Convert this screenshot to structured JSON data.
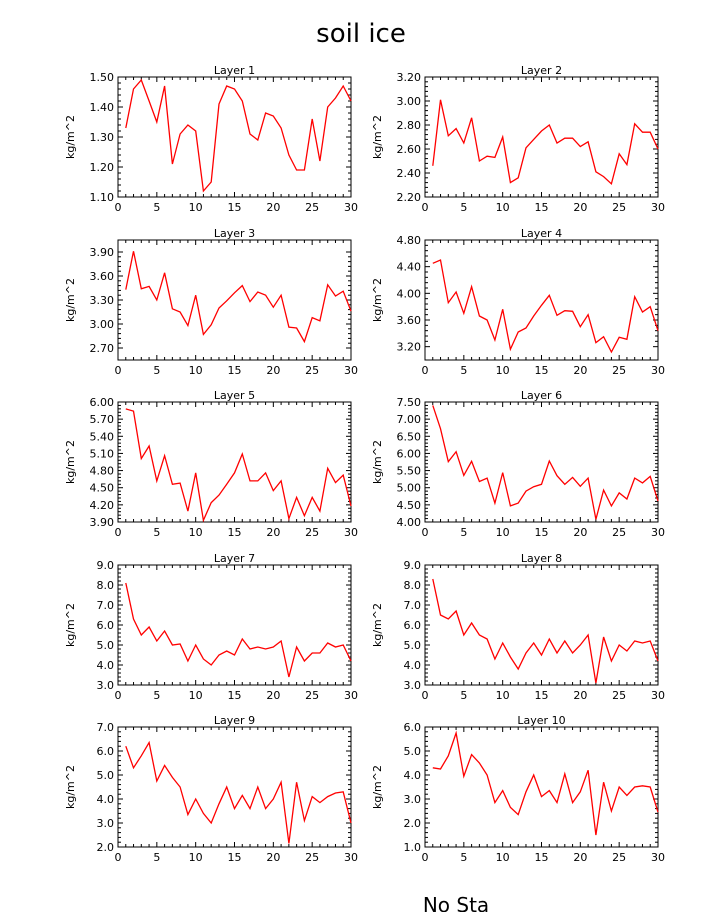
{
  "figure": {
    "title": "soil ice",
    "footer_text": "No Sta"
  },
  "colors": {
    "line": "#ff0000",
    "axis": "#000000",
    "background": "#ffffff"
  },
  "chart_data": [
    {
      "type": "line",
      "title": "Layer 1",
      "ylabel": "kg/m^2",
      "xlim": [
        0,
        30
      ],
      "xticks": [
        0,
        5,
        10,
        15,
        20,
        25,
        30
      ],
      "ylim": [
        1.1,
        1.5
      ],
      "yticks": [
        1.1,
        1.2,
        1.3,
        1.4,
        1.5
      ],
      "ytick_decimals": 2,
      "x": [
        1,
        2,
        3,
        4,
        5,
        6,
        7,
        8,
        9,
        10,
        11,
        12,
        13,
        14,
        15,
        16,
        17,
        18,
        19,
        20,
        21,
        22,
        23,
        24,
        25,
        26,
        27,
        28,
        29,
        30
      ],
      "values": [
        1.33,
        1.46,
        1.49,
        1.42,
        1.35,
        1.47,
        1.21,
        1.31,
        1.34,
        1.32,
        1.12,
        1.15,
        1.41,
        1.47,
        1.46,
        1.42,
        1.31,
        1.29,
        1.38,
        1.37,
        1.33,
        1.24,
        1.19,
        1.19,
        1.36,
        1.22,
        1.4,
        1.43,
        1.47,
        1.42
      ]
    },
    {
      "type": "line",
      "title": "Layer 2",
      "ylabel": "kg/m^2",
      "xlim": [
        0,
        30
      ],
      "xticks": [
        0,
        5,
        10,
        15,
        20,
        25,
        30
      ],
      "ylim": [
        2.2,
        3.2
      ],
      "yticks": [
        2.2,
        2.4,
        2.6,
        2.8,
        3.0,
        3.2
      ],
      "ytick_decimals": 2,
      "x": [
        1,
        2,
        3,
        4,
        5,
        6,
        7,
        8,
        9,
        10,
        11,
        12,
        13,
        14,
        15,
        16,
        17,
        18,
        19,
        20,
        21,
        22,
        23,
        24,
        25,
        26,
        27,
        28,
        29,
        30
      ],
      "values": [
        2.46,
        3.01,
        2.71,
        2.77,
        2.65,
        2.86,
        2.5,
        2.54,
        2.53,
        2.7,
        2.32,
        2.36,
        2.61,
        2.68,
        2.75,
        2.8,
        2.65,
        2.69,
        2.69,
        2.62,
        2.66,
        2.41,
        2.37,
        2.31,
        2.56,
        2.47,
        2.81,
        2.74,
        2.74,
        2.6
      ]
    },
    {
      "type": "line",
      "title": "Layer 3",
      "ylabel": "kg/m^2",
      "xlim": [
        0,
        30
      ],
      "xticks": [
        0,
        5,
        10,
        15,
        20,
        25,
        30
      ],
      "ylim": [
        2.55,
        4.05
      ],
      "yticks": [
        2.7,
        3.0,
        3.3,
        3.6,
        3.9
      ],
      "ytick_decimals": 2,
      "x": [
        1,
        2,
        3,
        4,
        5,
        6,
        7,
        8,
        9,
        10,
        11,
        12,
        13,
        14,
        15,
        16,
        17,
        18,
        19,
        20,
        21,
        22,
        23,
        24,
        25,
        26,
        27,
        28,
        29,
        30
      ],
      "values": [
        3.43,
        3.91,
        3.44,
        3.47,
        3.3,
        3.64,
        3.19,
        3.15,
        2.98,
        3.36,
        2.87,
        2.99,
        3.2,
        3.29,
        3.39,
        3.48,
        3.28,
        3.4,
        3.36,
        3.21,
        3.36,
        2.96,
        2.95,
        2.78,
        3.08,
        3.04,
        3.49,
        3.35,
        3.41,
        3.16
      ]
    },
    {
      "type": "line",
      "title": "Layer 4",
      "ylabel": "kg/m^2",
      "xlim": [
        0,
        30
      ],
      "xticks": [
        0,
        5,
        10,
        15,
        20,
        25,
        30
      ],
      "ylim": [
        3.0,
        4.8
      ],
      "yticks": [
        3.2,
        3.6,
        4.0,
        4.4,
        4.8
      ],
      "ytick_decimals": 2,
      "x": [
        1,
        2,
        3,
        4,
        5,
        6,
        7,
        8,
        9,
        10,
        11,
        12,
        13,
        14,
        15,
        16,
        17,
        18,
        19,
        20,
        21,
        22,
        23,
        24,
        25,
        26,
        27,
        28,
        29,
        30
      ],
      "values": [
        4.45,
        4.5,
        3.86,
        4.02,
        3.7,
        4.1,
        3.66,
        3.6,
        3.3,
        3.76,
        3.16,
        3.42,
        3.48,
        3.66,
        3.82,
        3.97,
        3.67,
        3.74,
        3.73,
        3.5,
        3.68,
        3.26,
        3.35,
        3.12,
        3.34,
        3.31,
        3.95,
        3.72,
        3.8,
        3.44
      ]
    },
    {
      "type": "line",
      "title": "Layer 5",
      "ylabel": "kg/m^2",
      "xlim": [
        0,
        30
      ],
      "xticks": [
        0,
        5,
        10,
        15,
        20,
        25,
        30
      ],
      "ylim": [
        3.9,
        6.0
      ],
      "yticks": [
        3.9,
        4.2,
        4.5,
        4.8,
        5.1,
        5.4,
        5.7,
        6.0
      ],
      "ytick_decimals": 2,
      "x": [
        1,
        2,
        3,
        4,
        5,
        6,
        7,
        8,
        9,
        10,
        11,
        12,
        13,
        14,
        15,
        16,
        17,
        18,
        19,
        20,
        21,
        22,
        23,
        24,
        25,
        26,
        27,
        28,
        29,
        30
      ],
      "values": [
        5.88,
        5.84,
        5.01,
        5.23,
        4.62,
        5.06,
        4.56,
        4.58,
        4.09,
        4.76,
        3.93,
        4.24,
        4.37,
        4.56,
        4.76,
        5.09,
        4.62,
        4.62,
        4.76,
        4.45,
        4.62,
        3.96,
        4.33,
        4.01,
        4.33,
        4.09,
        4.84,
        4.59,
        4.72,
        4.18
      ]
    },
    {
      "type": "line",
      "title": "Layer 6",
      "ylabel": "kg/m^2",
      "xlim": [
        0,
        30
      ],
      "xticks": [
        0,
        5,
        10,
        15,
        20,
        25,
        30
      ],
      "ylim": [
        4.0,
        7.5
      ],
      "yticks": [
        4.0,
        4.5,
        5.0,
        5.5,
        6.0,
        6.5,
        7.0,
        7.5
      ],
      "ytick_decimals": 2,
      "x": [
        1,
        2,
        3,
        4,
        5,
        6,
        7,
        8,
        9,
        10,
        11,
        12,
        13,
        14,
        15,
        16,
        17,
        18,
        19,
        20,
        21,
        22,
        23,
        24,
        25,
        26,
        27,
        28,
        29,
        30
      ],
      "values": [
        7.4,
        6.72,
        5.76,
        6.05,
        5.36,
        5.77,
        5.18,
        5.28,
        4.55,
        5.44,
        4.47,
        4.55,
        4.9,
        5.03,
        5.1,
        5.78,
        5.35,
        5.1,
        5.3,
        5.04,
        5.28,
        4.08,
        4.93,
        4.47,
        4.85,
        4.67,
        5.28,
        5.14,
        5.33,
        4.61
      ]
    },
    {
      "type": "line",
      "title": "Layer 7",
      "ylabel": "kg/m^2",
      "xlim": [
        0,
        30
      ],
      "xticks": [
        0,
        5,
        10,
        15,
        20,
        25,
        30
      ],
      "ylim": [
        3.0,
        9.0
      ],
      "yticks": [
        3.0,
        4.0,
        5.0,
        6.0,
        7.0,
        8.0,
        9.0
      ],
      "ytick_decimals": 1,
      "x": [
        1,
        2,
        3,
        4,
        5,
        6,
        7,
        8,
        9,
        10,
        11,
        12,
        13,
        14,
        15,
        16,
        17,
        18,
        19,
        20,
        21,
        22,
        23,
        24,
        25,
        26,
        27,
        28,
        29,
        30
      ],
      "values": [
        8.1,
        6.3,
        5.5,
        5.9,
        5.2,
        5.7,
        5.0,
        5.05,
        4.2,
        5.0,
        4.3,
        4.0,
        4.5,
        4.7,
        4.5,
        5.3,
        4.8,
        4.9,
        4.8,
        4.9,
        5.2,
        3.4,
        4.9,
        4.2,
        4.6,
        4.6,
        5.1,
        4.9,
        5.0,
        4.2
      ]
    },
    {
      "type": "line",
      "title": "Layer 8",
      "ylabel": "kg/m^2",
      "xlim": [
        0,
        30
      ],
      "xticks": [
        0,
        5,
        10,
        15,
        20,
        25,
        30
      ],
      "ylim": [
        3.0,
        9.0
      ],
      "yticks": [
        3.0,
        4.0,
        5.0,
        6.0,
        7.0,
        8.0,
        9.0
      ],
      "ytick_decimals": 1,
      "x": [
        1,
        2,
        3,
        4,
        5,
        6,
        7,
        8,
        9,
        10,
        11,
        12,
        13,
        14,
        15,
        16,
        17,
        18,
        19,
        20,
        21,
        22,
        23,
        24,
        25,
        26,
        27,
        28,
        29,
        30
      ],
      "values": [
        8.3,
        6.5,
        6.3,
        6.7,
        5.5,
        6.1,
        5.5,
        5.3,
        4.3,
        5.1,
        4.4,
        3.8,
        4.6,
        5.1,
        4.5,
        5.3,
        4.6,
        5.2,
        4.6,
        5.0,
        5.5,
        3.1,
        5.4,
        4.2,
        5.0,
        4.7,
        5.2,
        5.1,
        5.2,
        4.2
      ]
    },
    {
      "type": "line",
      "title": "Layer 9",
      "ylabel": "kg/m^2",
      "xlim": [
        0,
        30
      ],
      "xticks": [
        0,
        5,
        10,
        15,
        20,
        25,
        30
      ],
      "ylim": [
        2.0,
        7.0
      ],
      "yticks": [
        2.0,
        3.0,
        4.0,
        5.0,
        6.0,
        7.0
      ],
      "ytick_decimals": 1,
      "x": [
        1,
        2,
        3,
        4,
        5,
        6,
        7,
        8,
        9,
        10,
        11,
        12,
        13,
        14,
        15,
        16,
        17,
        18,
        19,
        20,
        21,
        22,
        23,
        24,
        25,
        26,
        27,
        28,
        29,
        30
      ],
      "values": [
        6.2,
        5.3,
        5.8,
        6.35,
        4.75,
        5.4,
        4.9,
        4.5,
        3.35,
        4.0,
        3.4,
        3.0,
        3.8,
        4.5,
        3.6,
        4.15,
        3.6,
        4.5,
        3.6,
        4.0,
        4.7,
        2.15,
        4.7,
        3.1,
        4.1,
        3.85,
        4.1,
        4.25,
        4.3,
        3.0
      ]
    },
    {
      "type": "line",
      "title": "Layer 10",
      "ylabel": "kg/m^2",
      "xlim": [
        0,
        30
      ],
      "xticks": [
        0,
        5,
        10,
        15,
        20,
        25,
        30
      ],
      "ylim": [
        1.0,
        6.0
      ],
      "yticks": [
        1.0,
        2.0,
        3.0,
        4.0,
        5.0,
        6.0
      ],
      "ytick_decimals": 1,
      "x": [
        1,
        2,
        3,
        4,
        5,
        6,
        7,
        8,
        9,
        10,
        11,
        12,
        13,
        14,
        15,
        16,
        17,
        18,
        19,
        20,
        21,
        22,
        23,
        24,
        25,
        26,
        27,
        28,
        29,
        30
      ],
      "values": [
        4.3,
        4.25,
        4.8,
        5.75,
        3.95,
        4.85,
        4.5,
        4.0,
        2.85,
        3.35,
        2.65,
        2.35,
        3.3,
        4.0,
        3.1,
        3.35,
        2.85,
        4.05,
        2.85,
        3.3,
        4.2,
        1.5,
        3.7,
        2.5,
        3.5,
        3.15,
        3.5,
        3.55,
        3.5,
        2.45
      ]
    }
  ]
}
